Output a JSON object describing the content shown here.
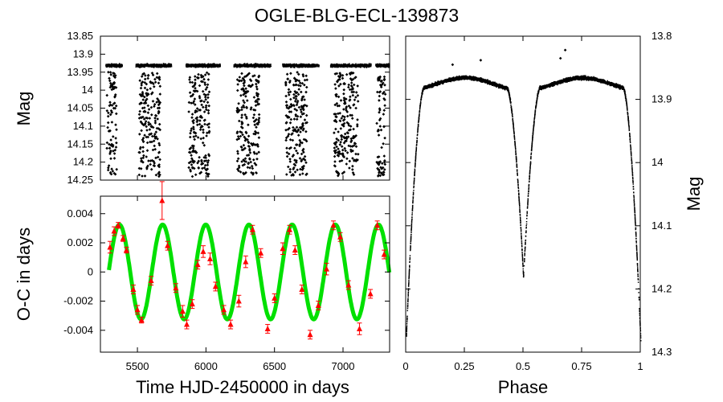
{
  "chart_data": [
    {
      "id": "lc_time",
      "type": "scatter",
      "title": "OGLE-BLG-ECL-139873",
      "xlabel": "",
      "ylabel": "Mag",
      "xlim": [
        5230,
        7340
      ],
      "ylim": [
        14.25,
        13.85
      ],
      "y_inverted": true,
      "yticks": [
        "13.85",
        "13.9",
        "13.95",
        "14",
        "14.05",
        "14.1",
        "14.15",
        "14.2",
        "14.25"
      ],
      "series": [
        {
          "name": "photometry",
          "color": "#000000",
          "baseline_mag": 13.93,
          "eclipse_depth_range": [
            13.95,
            14.24
          ],
          "observing_seasons": [
            [
              5265,
              5385
            ],
            [
              5485,
              5745
            ],
            [
              5850,
              6100
            ],
            [
              6200,
              6470
            ],
            [
              6555,
              6820
            ],
            [
              6905,
              7200
            ],
            [
              7235,
              7340
            ]
          ]
        }
      ]
    },
    {
      "id": "oc",
      "type": "scatter",
      "title": "",
      "xlabel": "Time HJD-2450000 in days",
      "ylabel": "O-C in days",
      "xlim": [
        5230,
        7340
      ],
      "ylim": [
        -0.0055,
        0.0052
      ],
      "xticks": [
        "5500",
        "6000",
        "6500",
        "7000"
      ],
      "xtick_values": [
        5500,
        6000,
        6500,
        7000
      ],
      "yticks": [
        "0.004",
        "0.002",
        "0",
        "-0.002",
        "-0.004"
      ],
      "ytick_values": [
        0.004,
        0.002,
        0,
        -0.002,
        -0.004
      ],
      "series": [
        {
          "name": "model",
          "type": "line",
          "color": "#00e000",
          "amplitude": 0.00325,
          "period_days": 315,
          "phase_zero_x": 5290
        },
        {
          "name": "eclipse timings",
          "type": "scatter",
          "color": "#ff0000",
          "marker": "triangle",
          "points": [
            {
              "x": 5300,
              "y": 0.0017,
              "err": 0.0004
            },
            {
              "x": 5330,
              "y": 0.0028,
              "err": 0.0003
            },
            {
              "x": 5360,
              "y": 0.0032,
              "err": 0.0002
            },
            {
              "x": 5395,
              "y": 0.0023,
              "err": 0.0002
            },
            {
              "x": 5420,
              "y": 0.0015,
              "err": 0.0002
            },
            {
              "x": 5470,
              "y": -0.0012,
              "err": 0.0003
            },
            {
              "x": 5500,
              "y": -0.0026,
              "err": 0.0003
            },
            {
              "x": 5530,
              "y": -0.0033,
              "err": 0.0002
            },
            {
              "x": 5600,
              "y": -0.0006,
              "err": 0.0003
            },
            {
              "x": 5680,
              "y": 0.0049,
              "err": 0.0013
            },
            {
              "x": 5720,
              "y": 0.0018,
              "err": 0.0003
            },
            {
              "x": 5780,
              "y": -0.0011,
              "err": 0.0003
            },
            {
              "x": 5830,
              "y": -0.0027,
              "err": 0.0004
            },
            {
              "x": 5860,
              "y": -0.0036,
              "err": 0.0003
            },
            {
              "x": 5900,
              "y": -0.0022,
              "err": 0.0003
            },
            {
              "x": 5940,
              "y": 0.0005,
              "err": 0.0003
            },
            {
              "x": 5980,
              "y": 0.0014,
              "err": 0.0004
            },
            {
              "x": 6030,
              "y": 0.0009,
              "err": 0.0004
            },
            {
              "x": 6070,
              "y": -0.001,
              "err": 0.0003
            },
            {
              "x": 6130,
              "y": -0.0026,
              "err": 0.0003
            },
            {
              "x": 6180,
              "y": -0.0036,
              "err": 0.0003
            },
            {
              "x": 6240,
              "y": -0.002,
              "err": 0.0004
            },
            {
              "x": 6290,
              "y": 0.0007,
              "err": 0.0004
            },
            {
              "x": 6340,
              "y": 0.0029,
              "err": 0.0003
            },
            {
              "x": 6400,
              "y": 0.0013,
              "err": 0.0003
            },
            {
              "x": 6450,
              "y": -0.0039,
              "err": 0.0003
            },
            {
              "x": 6500,
              "y": -0.0018,
              "err": 0.0003
            },
            {
              "x": 6560,
              "y": 0.0016,
              "err": 0.0004
            },
            {
              "x": 6610,
              "y": 0.0029,
              "err": 0.0003
            },
            {
              "x": 6650,
              "y": 0.0015,
              "err": 0.0003
            },
            {
              "x": 6700,
              "y": -0.0012,
              "err": 0.0003
            },
            {
              "x": 6760,
              "y": -0.0043,
              "err": 0.0003
            },
            {
              "x": 6820,
              "y": -0.0023,
              "err": 0.0003
            },
            {
              "x": 6880,
              "y": 0.0002,
              "err": 0.0004
            },
            {
              "x": 6930,
              "y": 0.0032,
              "err": 0.0003
            },
            {
              "x": 6980,
              "y": 0.0024,
              "err": 0.0003
            },
            {
              "x": 7040,
              "y": -0.0009,
              "err": 0.0003
            },
            {
              "x": 7120,
              "y": -0.0039,
              "err": 0.0004
            },
            {
              "x": 7200,
              "y": -0.0015,
              "err": 0.0003
            },
            {
              "x": 7250,
              "y": 0.0032,
              "err": 0.0003
            },
            {
              "x": 7300,
              "y": 0.0012,
              "err": 0.0003
            }
          ]
        }
      ]
    },
    {
      "id": "lc_phase",
      "type": "scatter",
      "title": "",
      "xlabel": "Phase",
      "ylabel": "Mag",
      "xlim": [
        0,
        1
      ],
      "ylim": [
        14.3,
        13.8
      ],
      "y_inverted": true,
      "xticks": [
        "0",
        "0.25",
        "0.5",
        "0.75",
        "1"
      ],
      "xtick_values": [
        0,
        0.25,
        0.5,
        0.75,
        1
      ],
      "yticks": [
        "13.8",
        "13.9",
        "14",
        "14.1",
        "14.2",
        "14.3"
      ],
      "ytick_values": [
        13.8,
        13.9,
        14.0,
        14.1,
        14.2,
        14.3
      ],
      "series": [
        {
          "name": "phased light curve",
          "color": "#000000",
          "max_brightness_mag": 13.865,
          "primary_min_mag": 14.26,
          "primary_min_phase": 0.0,
          "secondary_min_mag": 14.16,
          "secondary_min_phase": 0.5,
          "outliers": [
            {
              "phase": 0.2,
              "mag": 13.845
            },
            {
              "phase": 0.32,
              "mag": 13.838
            },
            {
              "phase": 0.66,
              "mag": 13.835
            },
            {
              "phase": 0.68,
              "mag": 13.822
            }
          ]
        }
      ]
    }
  ]
}
